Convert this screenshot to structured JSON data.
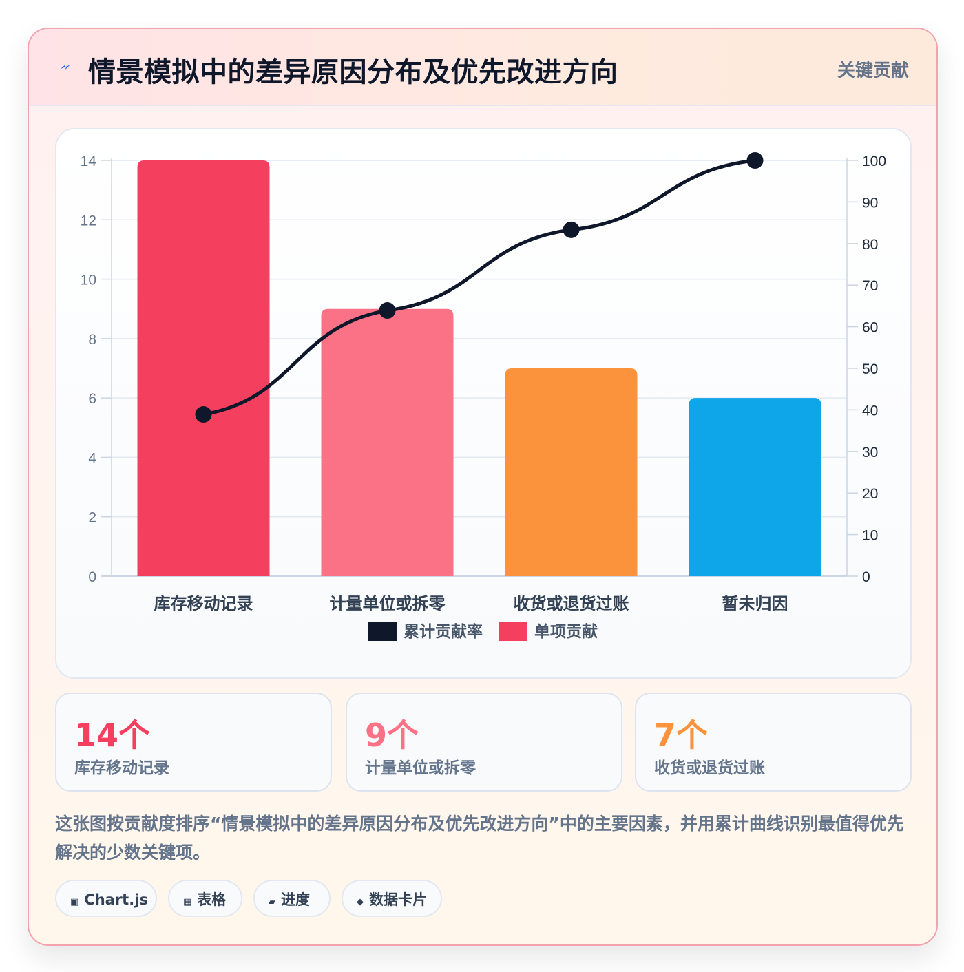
{
  "header": {
    "icon": "bolt-icon",
    "title": "情景模拟中的差异原因分布及优先改进方向",
    "badge": "关键贡献"
  },
  "chart_data": {
    "type": "bar",
    "categories": [
      "库存移动记录",
      "计量单位或拆零",
      "收货或退货过账",
      "暂未归因"
    ],
    "series": [
      {
        "name": "单项贡献",
        "type": "bar",
        "values": [
          14,
          9,
          7,
          6
        ],
        "axis": "left"
      },
      {
        "name": "累计贡献率",
        "type": "line",
        "values": [
          38.9,
          63.9,
          83.3,
          100
        ],
        "axis": "right"
      }
    ],
    "bar_colors": [
      "#f43f5e",
      "#fb7185",
      "#fb923c",
      "#0ea5e9"
    ],
    "line_color": "#0f172a",
    "y_left": {
      "min": 0,
      "max": 14,
      "ticks": [
        0,
        2,
        4,
        6,
        8,
        10,
        12,
        14
      ]
    },
    "y_right": {
      "min": 0,
      "max": 100,
      "ticks": [
        0,
        10,
        20,
        30,
        40,
        50,
        60,
        70,
        80,
        90,
        100
      ]
    },
    "legend": [
      {
        "label": "累计贡献率",
        "color": "#0f172a"
      },
      {
        "label": "单项贡献",
        "color": "#f43f5e"
      }
    ],
    "legend_position": "bottom",
    "grid": true
  },
  "stats": [
    {
      "value": "14个",
      "label": "库存移动记录",
      "color": "#f43f5e"
    },
    {
      "value": "9个",
      "label": "计量单位或拆零",
      "color": "#fb7185"
    },
    {
      "value": "7个",
      "label": "收货或退货过账",
      "color": "#fb923c"
    }
  ],
  "description": "这张图按贡献度排序“情景模拟中的差异原因分布及优先改进方向”中的主要因素，并用累计曲线识别最值得优先解决的少数关键项。",
  "tags": [
    {
      "icon": "▣",
      "label": "Chart.js"
    },
    {
      "icon": "▦",
      "label": "表格"
    },
    {
      "icon": "▰",
      "label": "进度"
    },
    {
      "icon": "◆",
      "label": "数据卡片"
    }
  ]
}
